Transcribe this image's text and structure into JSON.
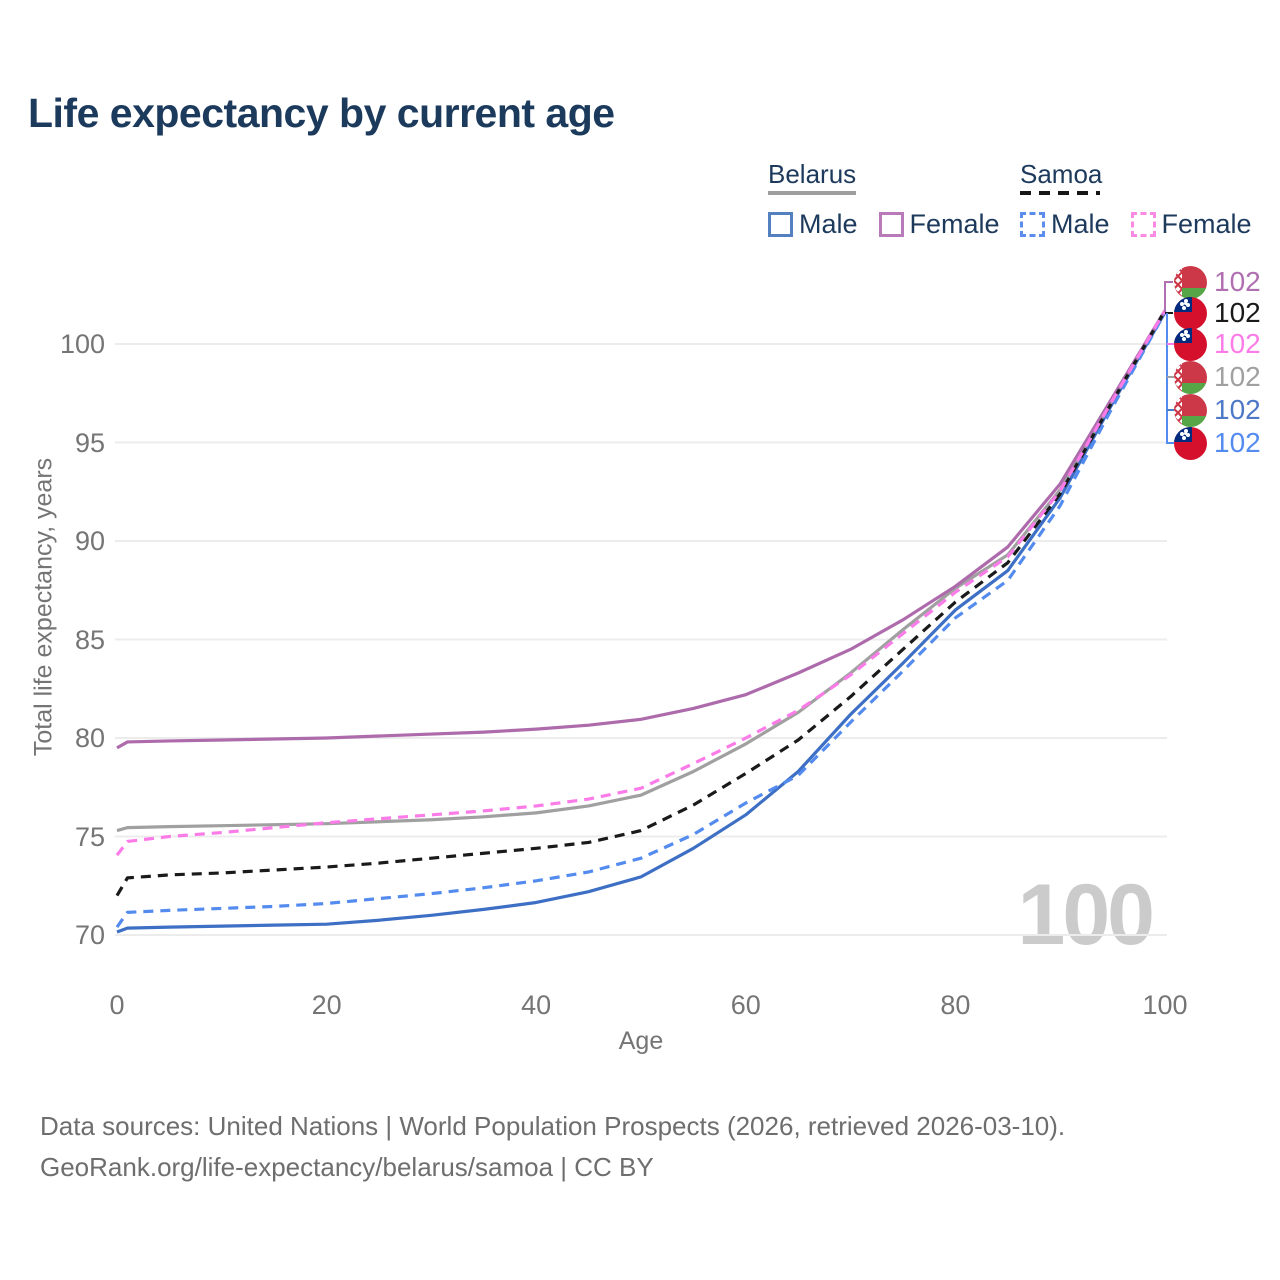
{
  "title": "Life expectancy by current age",
  "legend": {
    "belarus": {
      "label": "Belarus",
      "male": "Male",
      "female": "Female"
    },
    "samoa": {
      "label": "Samoa",
      "male": "Male",
      "female": "Female"
    }
  },
  "chart_data": {
    "type": "line",
    "title": "Life expectancy by current age",
    "xlabel": "Age",
    "ylabel": "Total life expectancy, years",
    "xlim": [
      0,
      100
    ],
    "ylim": [
      69,
      103
    ],
    "x_ticks": [
      0,
      20,
      40,
      60,
      80,
      100
    ],
    "y_ticks": [
      70,
      75,
      80,
      85,
      90,
      95,
      100
    ],
    "grid": "horizontal",
    "legend_position": "top-right",
    "watermark": "100",
    "x": [
      0,
      1,
      5,
      10,
      15,
      20,
      25,
      30,
      35,
      40,
      45,
      50,
      55,
      60,
      65,
      70,
      75,
      80,
      85,
      90,
      95,
      100
    ],
    "series": [
      {
        "name": "Belarus Male",
        "country": "Belarus",
        "sex": "Male",
        "style": "solid",
        "color": "#3d6fc4",
        "values": [
          70.15,
          70.35,
          70.4,
          70.45,
          70.5,
          70.55,
          70.75,
          71.0,
          71.3,
          71.65,
          72.2,
          72.95,
          74.4,
          76.1,
          78.3,
          81.2,
          83.8,
          86.5,
          88.5,
          92.2,
          97.0,
          101.6
        ]
      },
      {
        "name": "Belarus Both sexes",
        "country": "Belarus",
        "sex": "Both",
        "style": "solid",
        "color": "#a0a0a0",
        "values": [
          75.3,
          75.45,
          75.5,
          75.55,
          75.6,
          75.65,
          75.75,
          75.85,
          76.0,
          76.2,
          76.55,
          77.1,
          78.3,
          79.7,
          81.3,
          83.3,
          85.5,
          87.6,
          89.3,
          92.6,
          97.2,
          101.7
        ]
      },
      {
        "name": "Belarus Female",
        "country": "Belarus",
        "sex": "Female",
        "style": "solid",
        "color": "#ad6bac",
        "values": [
          79.5,
          79.8,
          79.85,
          79.9,
          79.95,
          80.0,
          80.1,
          80.2,
          80.3,
          80.45,
          80.65,
          80.95,
          81.5,
          82.2,
          83.3,
          84.5,
          86.0,
          87.7,
          89.7,
          92.9,
          97.3,
          101.7
        ]
      },
      {
        "name": "Samoa Both sexes",
        "country": "Samoa",
        "sex": "Both",
        "style": "dashed",
        "color": "#1a1a1a",
        "values": [
          72.0,
          72.9,
          73.05,
          73.15,
          73.3,
          73.45,
          73.65,
          73.9,
          74.15,
          74.4,
          74.7,
          75.3,
          76.6,
          78.2,
          79.9,
          82.1,
          84.5,
          86.9,
          88.9,
          92.4,
          97.1,
          101.7
        ]
      },
      {
        "name": "Samoa Male",
        "country": "Samoa",
        "sex": "Male",
        "style": "dashed",
        "color": "#548bef",
        "values": [
          70.4,
          71.15,
          71.25,
          71.35,
          71.45,
          71.6,
          71.85,
          72.1,
          72.4,
          72.75,
          73.2,
          73.9,
          75.1,
          76.7,
          78.1,
          80.8,
          83.4,
          86.1,
          88.0,
          91.8,
          96.8,
          101.6
        ]
      },
      {
        "name": "Samoa Female",
        "country": "Samoa",
        "sex": "Female",
        "style": "dashed",
        "color": "#fb7ce8",
        "values": [
          74.05,
          74.75,
          75.0,
          75.2,
          75.45,
          75.7,
          75.9,
          76.1,
          76.3,
          76.55,
          76.9,
          77.45,
          78.7,
          80.0,
          81.4,
          83.2,
          85.3,
          87.4,
          89.2,
          92.55,
          97.15,
          101.7
        ]
      }
    ],
    "end_labels": [
      {
        "series": "Belarus Female",
        "flag": "belarus",
        "value": "102",
        "color": "#b06fb0"
      },
      {
        "series": "Samoa Both sexes",
        "flag": "samoa",
        "value": "102",
        "color": "#1a1a1a"
      },
      {
        "series": "Samoa Female",
        "flag": "samoa",
        "value": "102",
        "color": "#fb7ce8"
      },
      {
        "series": "Belarus Both sexes",
        "flag": "belarus",
        "value": "102",
        "color": "#a0a0a0"
      },
      {
        "series": "Belarus Male",
        "flag": "belarus",
        "value": "102",
        "color": "#4e79c6"
      },
      {
        "series": "Samoa Male",
        "flag": "samoa",
        "value": "102",
        "color": "#548bef"
      }
    ]
  },
  "footer": {
    "line1": "Data sources: United Nations | World Population Prospects (2026, retrieved 2026-03-10).",
    "line2": "GeoRank.org/life-expectancy/belarus/samoa | CC BY"
  }
}
